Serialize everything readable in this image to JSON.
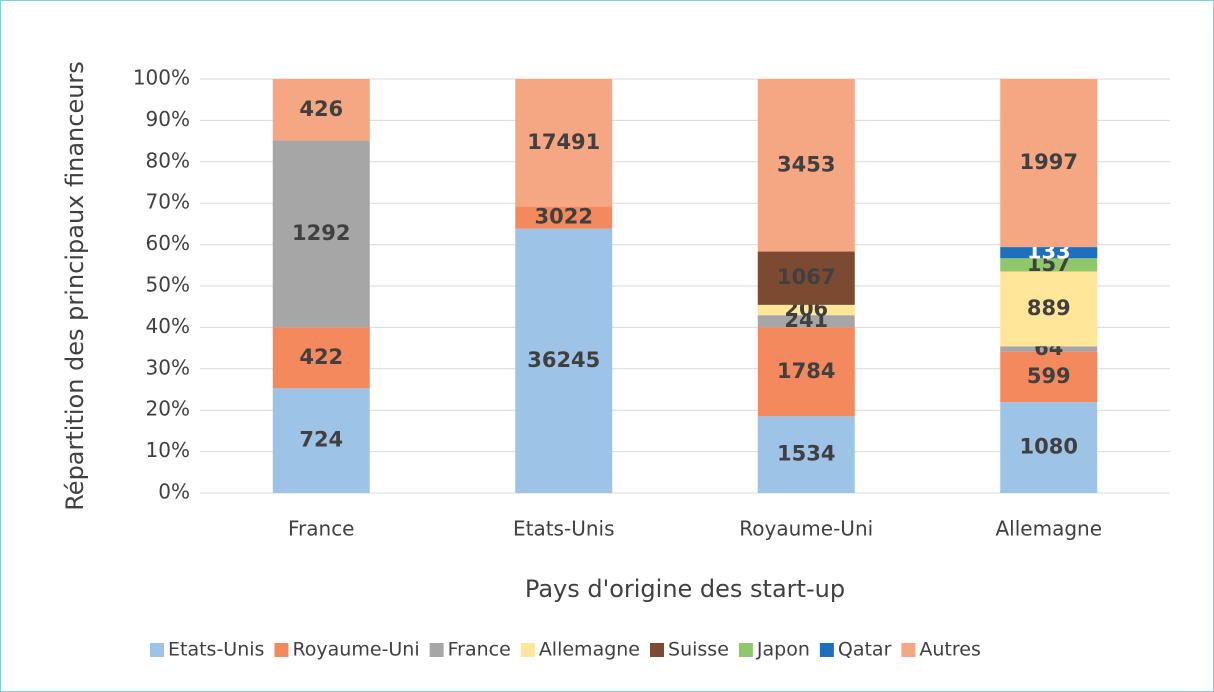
{
  "chart_data": {
    "type": "bar",
    "stacking": "percent",
    "x_label": "Pays d'origine des start-up",
    "y_label": "Répartition des principaux financeurs",
    "categories": [
      "France",
      "Etats-Unis",
      "Royaume-Uni",
      "Allemagne"
    ],
    "series": [
      {
        "name": "Etats-Unis",
        "color": "#9dc3e6",
        "values": [
          724,
          36245,
          1534,
          1080
        ]
      },
      {
        "name": "Royaume-Uni",
        "color": "#f4895e",
        "values": [
          422,
          3022,
          1784,
          599
        ]
      },
      {
        "name": "France",
        "color": "#a6a6a6",
        "values": [
          1292,
          null,
          241,
          64
        ]
      },
      {
        "name": "Allemagne",
        "color": "#ffe699",
        "values": [
          null,
          null,
          206,
          889
        ]
      },
      {
        "name": "Suisse",
        "color": "#7b4a31",
        "values": [
          null,
          null,
          1067,
          null
        ]
      },
      {
        "name": "Japon",
        "color": "#8fc76b",
        "values": [
          null,
          null,
          null,
          157
        ]
      },
      {
        "name": "Qatar",
        "color": "#1f6fbf",
        "values": [
          null,
          null,
          null,
          133
        ]
      },
      {
        "name": "Autres",
        "color": "#f5a683",
        "values": [
          426,
          17491,
          3453,
          1997
        ]
      }
    ],
    "ylim": [
      0,
      100
    ],
    "yticks": [
      {
        "value": 0,
        "label": "0%"
      },
      {
        "value": 10,
        "label": "10%"
      },
      {
        "value": 20,
        "label": "20%"
      },
      {
        "value": 30,
        "label": "30%"
      },
      {
        "value": 40,
        "label": "40%"
      },
      {
        "value": 50,
        "label": "50%"
      },
      {
        "value": 60,
        "label": "60%"
      },
      {
        "value": 70,
        "label": "70%"
      },
      {
        "value": 80,
        "label": "80%"
      },
      {
        "value": 90,
        "label": "90%"
      },
      {
        "value": 100,
        "label": "100%"
      }
    ],
    "grid": true,
    "legend": "bottom"
  }
}
